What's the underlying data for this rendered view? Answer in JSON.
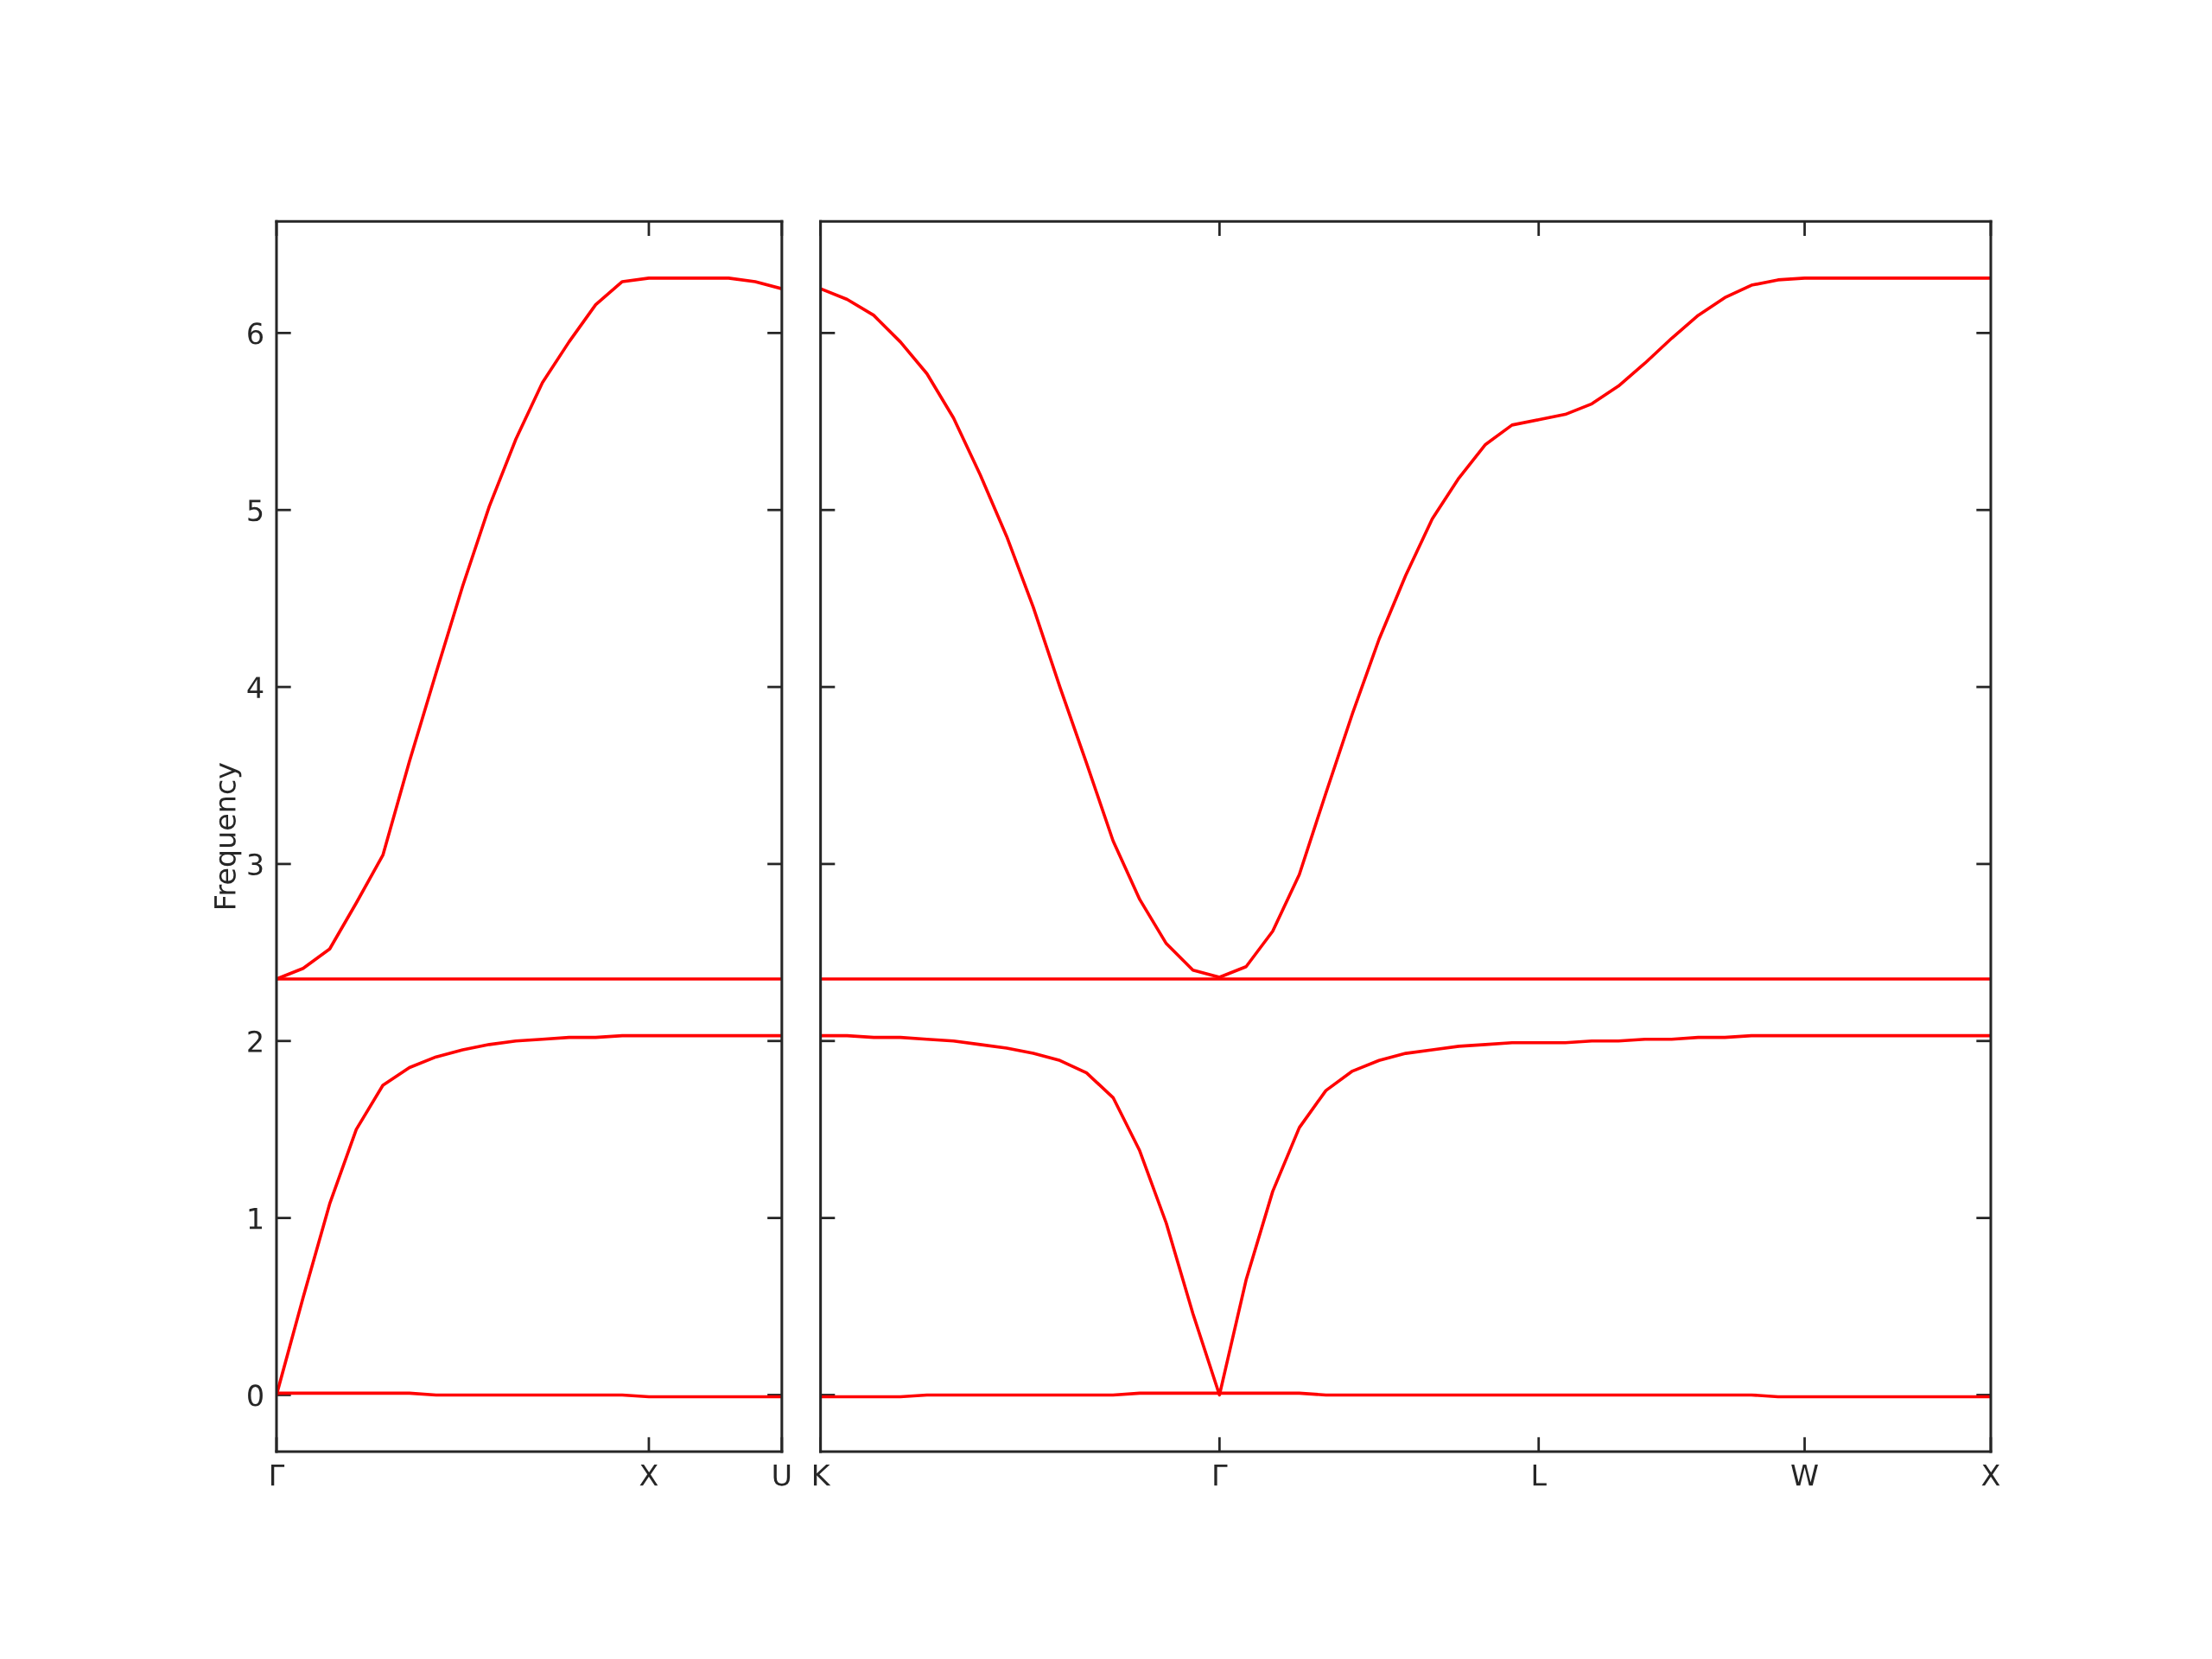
{
  "chart_data": [
    {
      "type": "line",
      "ylabel": "Frequency",
      "ylim": [
        -0.32,
        6.63
      ],
      "yticks": [
        0,
        1,
        2,
        3,
        4,
        5,
        6
      ],
      "categories": [
        "Γ",
        null,
        null,
        null,
        null,
        null,
        null,
        null,
        null,
        null,
        null,
        null,
        null,
        null,
        "X",
        null,
        null,
        null,
        null,
        "U"
      ],
      "series": [
        {
          "color": "#ff0000",
          "values": [
            0.01,
            0.01,
            0.01,
            0.01,
            0.01,
            0.01,
            0,
            0,
            0,
            0,
            0,
            0,
            0,
            0,
            -0.01,
            -0.01,
            -0.01,
            -0.01,
            -0.01,
            -0.01
          ]
        },
        {
          "color": "#ff0000",
          "values": [
            0,
            0.55,
            1.08,
            1.5,
            1.75,
            1.85,
            1.91,
            1.95,
            1.98,
            2.0,
            2.01,
            2.02,
            2.02,
            2.03,
            2.03,
            2.03,
            2.03,
            2.03,
            2.03,
            2.03
          ]
        },
        {
          "color": "#ff0000",
          "values": [
            2.35,
            2.35,
            2.35,
            2.35,
            2.35,
            2.35,
            2.35,
            2.35,
            2.35,
            2.35,
            2.35,
            2.35,
            2.35,
            2.35,
            2.35,
            2.35,
            2.35,
            2.35,
            2.35,
            2.35
          ]
        },
        {
          "color": "#ff0000",
          "values": [
            2.35,
            2.41,
            2.52,
            2.78,
            3.05,
            3.58,
            4.08,
            4.57,
            5.02,
            5.4,
            5.72,
            5.95,
            6.16,
            6.29,
            6.31,
            6.31,
            6.31,
            6.31,
            6.29,
            6.25
          ]
        }
      ]
    },
    {
      "type": "line",
      "tick_labels": "x",
      "ylim": [
        -0.32,
        6.63
      ],
      "yticks": [
        0,
        1,
        2,
        3,
        4,
        5,
        6
      ],
      "categories": [
        "K",
        null,
        null,
        null,
        null,
        null,
        null,
        null,
        null,
        null,
        null,
        null,
        null,
        null,
        null,
        "Γ",
        null,
        null,
        null,
        null,
        null,
        null,
        null,
        null,
        null,
        null,
        null,
        "L",
        null,
        null,
        null,
        null,
        null,
        null,
        null,
        null,
        null,
        "W",
        null,
        null,
        null,
        null,
        null,
        null,
        "X"
      ],
      "series": [
        {
          "color": "#ff0000",
          "values": [
            -0.01,
            -0.01,
            -0.01,
            -0.01,
            0,
            0,
            0,
            0,
            0,
            0,
            0,
            0,
            0.01,
            0.01,
            0.01,
            0.01,
            0.01,
            0.01,
            0.01,
            0,
            0,
            0,
            0,
            0,
            0,
            0,
            0,
            0,
            0,
            0,
            0,
            0,
            0,
            0,
            0,
            0,
            -0.01,
            -0.01,
            -0.01,
            -0.01,
            -0.01,
            -0.01,
            -0.01,
            -0.01,
            -0.01
          ]
        },
        {
          "color": "#ff0000",
          "values": [
            2.03,
            2.03,
            2.02,
            2.02,
            2.01,
            2.0,
            1.98,
            1.96,
            1.93,
            1.89,
            1.82,
            1.68,
            1.38,
            0.97,
            0.46,
            0,
            0.65,
            1.15,
            1.51,
            1.72,
            1.83,
            1.89,
            1.93,
            1.95,
            1.97,
            1.98,
            1.99,
            1.99,
            1.99,
            2.0,
            2.0,
            2.01,
            2.01,
            2.02,
            2.02,
            2.03,
            2.03,
            2.03,
            2.03,
            2.03,
            2.03,
            2.03,
            2.03,
            2.03,
            2.03
          ]
        },
        {
          "color": "#ff0000",
          "values": [
            2.35,
            2.35,
            2.35,
            2.35,
            2.35,
            2.35,
            2.35,
            2.35,
            2.35,
            2.35,
            2.35,
            2.35,
            2.35,
            2.35,
            2.35,
            2.35,
            2.35,
            2.35,
            2.35,
            2.35,
            2.35,
            2.35,
            2.35,
            2.35,
            2.35,
            2.35,
            2.35,
            2.35,
            2.35,
            2.35,
            2.35,
            2.35,
            2.35,
            2.35,
            2.35,
            2.35,
            2.35,
            2.35,
            2.35,
            2.35,
            2.35,
            2.35,
            2.35,
            2.35,
            2.35
          ]
        },
        {
          "color": "#ff0000",
          "values": [
            6.25,
            6.19,
            6.1,
            5.95,
            5.77,
            5.52,
            5.2,
            4.85,
            4.45,
            4.0,
            3.57,
            3.13,
            2.8,
            2.55,
            2.4,
            2.36,
            2.42,
            2.62,
            2.94,
            3.4,
            3.85,
            4.27,
            4.63,
            4.95,
            5.18,
            5.37,
            5.48,
            5.51,
            5.54,
            5.6,
            5.7,
            5.83,
            5.97,
            6.1,
            6.2,
            6.27,
            6.3,
            6.31,
            6.31,
            6.31,
            6.31,
            6.31,
            6.31,
            6.31,
            6.31
          ]
        }
      ]
    }
  ]
}
